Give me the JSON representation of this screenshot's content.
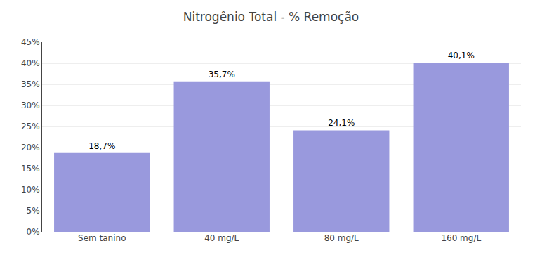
{
  "chart_data": {
    "type": "bar",
    "title": "Nitrogênio Total - % Remoção",
    "categories": [
      "Sem tanino",
      "40 mg/L",
      "80 mg/L",
      "160 mg/L"
    ],
    "values": [
      18.7,
      35.7,
      24.1,
      40.1
    ],
    "value_labels": [
      "18,7%",
      "35,7%",
      "24,1%",
      "40,1%"
    ],
    "data_labels": true,
    "color": "#9999dd",
    "ylim": [
      0,
      45
    ],
    "yticks": [
      {
        "value": 0,
        "label": "0%"
      },
      {
        "value": 5,
        "label": "5%"
      },
      {
        "value": 10,
        "label": "10%"
      },
      {
        "value": 15,
        "label": "15%"
      },
      {
        "value": 20,
        "label": "20%"
      },
      {
        "value": 25,
        "label": "25%"
      },
      {
        "value": 30,
        "label": "30%"
      },
      {
        "value": 35,
        "label": "35%"
      },
      {
        "value": 40,
        "label": "40%"
      },
      {
        "value": 45,
        "label": "45%"
      }
    ],
    "grid": true
  }
}
